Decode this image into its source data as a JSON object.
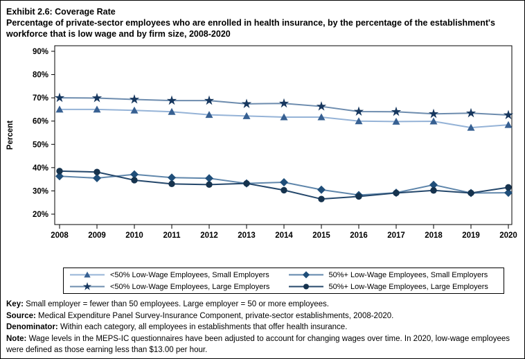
{
  "header": {
    "title": "Exhibit 2.6: Coverage Rate",
    "subtitle": "Percentage of private-sector employees who are enrolled in health insurance, by the percentage of the establishment's workforce that is low wage and by firm size, 2008-2020"
  },
  "chart_data": {
    "type": "line",
    "title": "Coverage Rate",
    "xlabel": "",
    "ylabel": "Percent",
    "x": [
      2008,
      2009,
      2010,
      2011,
      2012,
      2013,
      2014,
      2015,
      2016,
      2017,
      2018,
      2019,
      2020
    ],
    "yticks": [
      20,
      30,
      40,
      50,
      60,
      70,
      80,
      90
    ],
    "ytick_suffix": "%",
    "ylim": [
      20,
      90
    ],
    "grid": false,
    "legend_position": "bottom",
    "frame_color": "#000000",
    "series": [
      {
        "name": "<50% Low-Wage Employees, Small Employers",
        "marker": "triangle",
        "marker_color": "#376092",
        "line_color": "#95B3D7",
        "values": [
          65.0,
          65.0,
          64.6,
          64.0,
          62.7,
          62.2,
          61.7,
          61.7,
          60.0,
          59.8,
          59.9,
          57.2,
          58.4
        ]
      },
      {
        "name": "<50% Low-Wage Employees, Large Employers",
        "marker": "star",
        "marker_color": "#17375E",
        "line_color": "#6D8CAE",
        "values": [
          70.0,
          69.9,
          69.3,
          68.8,
          68.8,
          67.4,
          67.6,
          66.3,
          64.1,
          64.0,
          63.1,
          63.4,
          62.6
        ]
      },
      {
        "name": "50%+ Low-Wage Employees, Small Employers",
        "marker": "diamond",
        "marker_color": "#1F4E79",
        "line_color": "#5F86AB",
        "values": [
          36.3,
          35.5,
          37.1,
          35.7,
          35.4,
          33.2,
          33.7,
          30.5,
          28.2,
          29.2,
          32.6,
          29.1,
          29.2
        ]
      },
      {
        "name": "50%+ Low-Wage Employees, Large Employers",
        "marker": "circle",
        "marker_color": "#16334E",
        "line_color": "#24476B",
        "values": [
          38.5,
          38.1,
          34.6,
          33.0,
          32.7,
          33.2,
          30.3,
          26.5,
          27.6,
          29.1,
          30.2,
          29.1,
          31.5
        ]
      }
    ]
  },
  "footer": {
    "lines": [
      {
        "label": "Key:",
        "text": "Small employer = fewer than 50 employees. Large employer = 50 or more employees."
      },
      {
        "label": "Source:",
        "text": "Medical Expenditure Panel Survey-Insurance Component, private-sector establishments, 2008-2020."
      },
      {
        "label": "Denominator:",
        "text": "Within each category, all employees in establishments that offer health insurance."
      },
      {
        "label": "Note:",
        "text": "Wage levels in the MEPS-IC questionnaires have been adjusted to account for changing wages over time. In 2020, low-wage employees were defined as those earning less than $13.00 per hour."
      }
    ]
  }
}
